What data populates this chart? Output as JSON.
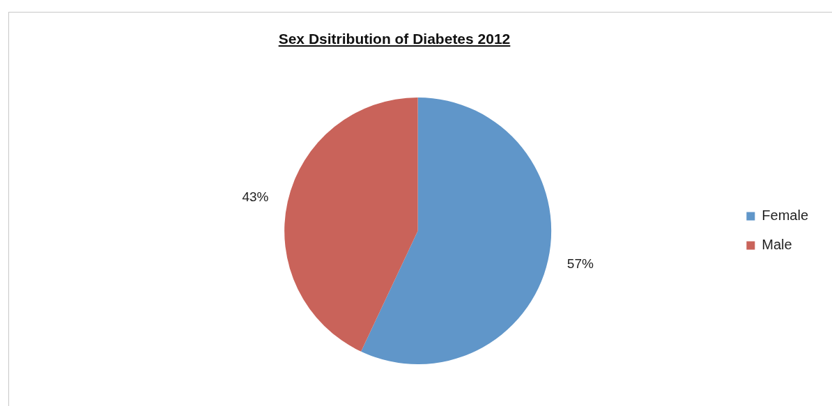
{
  "chart_data": {
    "type": "pie",
    "title": "Sex Dsitribution of Diabetes 2012",
    "categories": [
      "Female",
      "Male"
    ],
    "values": [
      57,
      43
    ],
    "colors": [
      "#6096c9",
      "#c9635a"
    ],
    "value_labels": [
      "57%",
      "43%"
    ],
    "legend": "right"
  }
}
